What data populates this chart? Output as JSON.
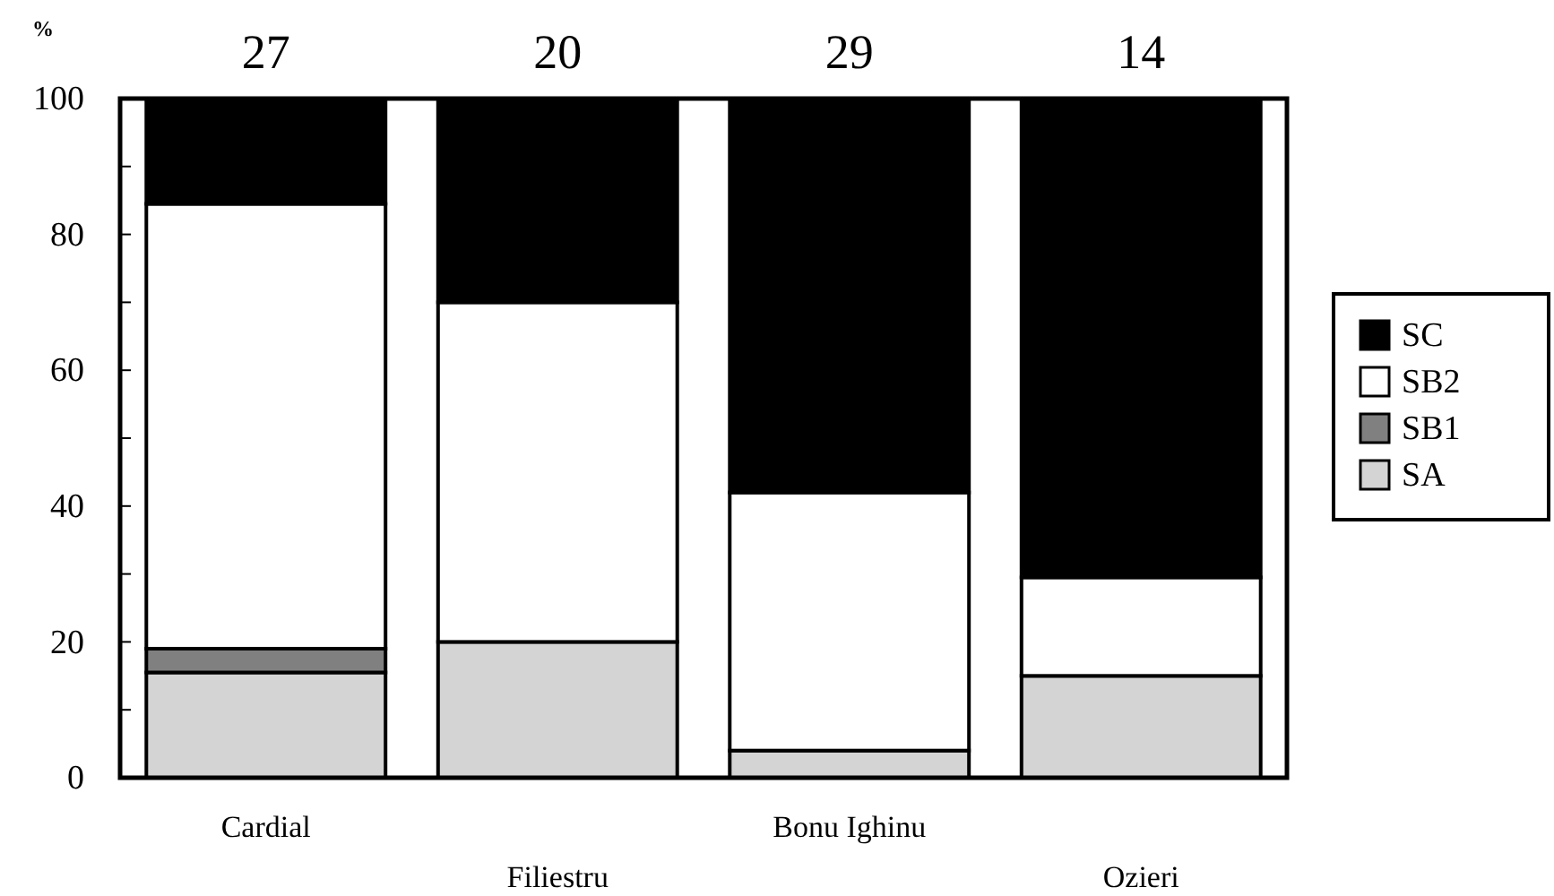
{
  "chart_data": {
    "type": "bar",
    "stacked": true,
    "ylabel": "%",
    "categories": [
      "Cardial",
      "Filiestru",
      "Bonu Ighinu",
      "Ozieri"
    ],
    "series": [
      {
        "name": "SA",
        "color": "#d4d4d4",
        "values": [
          15.5,
          20,
          4,
          15
        ]
      },
      {
        "name": "SB1",
        "color": "#808080",
        "values": [
          3.5,
          0,
          0,
          0
        ]
      },
      {
        "name": "SB2",
        "color": "#ffffff",
        "values": [
          65.5,
          50,
          38,
          14.5
        ]
      },
      {
        "name": "SC",
        "color": "#000000",
        "values": [
          15.5,
          30,
          58,
          70.5
        ]
      }
    ],
    "ylim": [
      0,
      100
    ],
    "yticks": [
      0,
      {
        "value": 10,
        "label": null
      },
      20,
      {
        "value": 30,
        "label": null
      },
      40,
      {
        "value": 50,
        "label": null
      },
      60,
      {
        "value": 70,
        "label": null
      },
      80,
      {
        "value": 90,
        "label": null
      },
      100
    ],
    "annotations": [
      "27",
      "20",
      "29",
      "14"
    ],
    "grid": false,
    "legend": "right"
  }
}
